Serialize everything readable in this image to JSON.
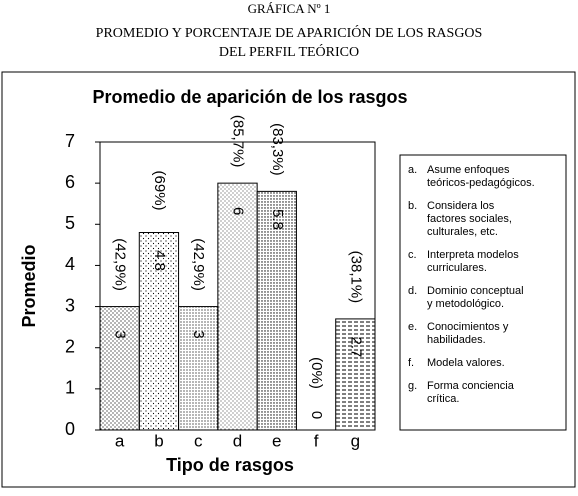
{
  "header": {
    "label": "GRÁFICA Nº 1",
    "title_lines": [
      "PROMEDIO Y PORCENTAJE DE APARICIÓN DE LOS RASGOS",
      "DEL PERFIL TEÓRICO"
    ]
  },
  "chart_data": {
    "type": "bar",
    "title": "Promedio de aparición de los rasgos",
    "x_label": "Tipo de rasgos",
    "y_label": "Promedio",
    "categories": [
      "a",
      "b",
      "c",
      "d",
      "e",
      "f",
      "g"
    ],
    "values": [
      3,
      4.8,
      3,
      6,
      5.8,
      0,
      2.7
    ],
    "percent_labels": [
      "(42,9%)",
      "(69%)",
      "(42,9%)",
      "(85,7%)",
      "(83,3%)",
      "(0%)",
      "(38,1%)"
    ],
    "ylim": [
      0,
      7
    ],
    "yticks": [
      0,
      1,
      2,
      3,
      4,
      5,
      6,
      7
    ],
    "color": "#000000",
    "legend": [
      {
        "marker": "a.",
        "lines": [
          "Asume enfoques",
          "teóricos-pedagógicos."
        ]
      },
      {
        "marker": "b.",
        "lines": [
          "Considera los",
          "factores sociales,",
          "culturales, etc."
        ]
      },
      {
        "marker": "c.",
        "lines": [
          "Interpreta modelos",
          "curriculares."
        ]
      },
      {
        "marker": "d.",
        "lines": [
          "Dominio conceptual",
          "y metodológico."
        ]
      },
      {
        "marker": "e.",
        "lines": [
          "Conocimientos y",
          "habilidades."
        ]
      },
      {
        "marker": "f.",
        "lines": [
          "Modela valores."
        ]
      },
      {
        "marker": "g.",
        "lines": [
          "Forma conciencia",
          "crítica."
        ]
      }
    ]
  }
}
